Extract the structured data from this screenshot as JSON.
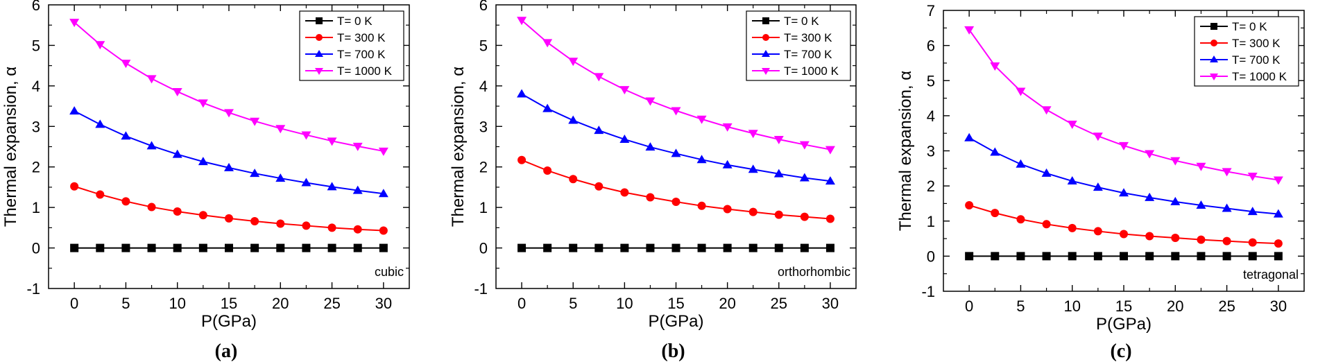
{
  "chart_data": [
    {
      "type": "line",
      "panel_label": "(a)",
      "annotation": "cubic",
      "xlabel": "P(GPa)",
      "ylabel": "Thermal expansion, α",
      "xlim": [
        -2.5,
        32.5
      ],
      "ylim": [
        -1,
        6
      ],
      "xticks": [
        0,
        5,
        10,
        15,
        20,
        25,
        30
      ],
      "yticks": [
        -1,
        0,
        1,
        2,
        3,
        4,
        5,
        6
      ],
      "x": [
        0,
        2.5,
        5,
        7.5,
        10,
        12.5,
        15,
        17.5,
        20,
        22.5,
        25,
        27.5,
        30
      ],
      "series": [
        {
          "name": "T= 0 K",
          "color": "#000000",
          "marker": "square",
          "values": [
            0,
            0,
            0,
            0,
            0,
            0,
            0,
            0,
            0,
            0,
            0,
            0,
            0
          ]
        },
        {
          "name": "T= 300 K",
          "color": "#ff0000",
          "marker": "circle",
          "values": [
            1.52,
            1.32,
            1.15,
            1.01,
            0.9,
            0.81,
            0.73,
            0.66,
            0.6,
            0.55,
            0.5,
            0.46,
            0.43
          ]
        },
        {
          "name": "T= 700 K",
          "color": "#0000ff",
          "marker": "triangle-up",
          "values": [
            3.38,
            3.05,
            2.76,
            2.52,
            2.31,
            2.13,
            1.98,
            1.84,
            1.72,
            1.61,
            1.51,
            1.42,
            1.34
          ]
        },
        {
          "name": "T= 1000 K",
          "color": "#ff00ff",
          "marker": "triangle-down",
          "values": [
            5.57,
            5.02,
            4.56,
            4.18,
            3.86,
            3.58,
            3.34,
            3.13,
            2.95,
            2.79,
            2.64,
            2.51,
            2.39
          ]
        }
      ]
    },
    {
      "type": "line",
      "panel_label": "(b)",
      "annotation": "orthorhombic",
      "xlabel": "P(GPa)",
      "ylabel": "Thermal expansion, α",
      "xlim": [
        -2.5,
        32.5
      ],
      "ylim": [
        -1,
        6
      ],
      "xticks": [
        0,
        5,
        10,
        15,
        20,
        25,
        30
      ],
      "yticks": [
        -1,
        0,
        1,
        2,
        3,
        4,
        5,
        6
      ],
      "x": [
        0,
        2.5,
        5,
        7.5,
        10,
        12.5,
        15,
        17.5,
        20,
        22.5,
        25,
        27.5,
        30
      ],
      "series": [
        {
          "name": "T= 0 K",
          "color": "#000000",
          "marker": "square",
          "values": [
            0,
            0,
            0,
            0,
            0,
            0,
            0,
            0,
            0,
            0,
            0,
            0,
            0
          ]
        },
        {
          "name": "T= 300 K",
          "color": "#ff0000",
          "marker": "circle",
          "values": [
            2.17,
            1.91,
            1.7,
            1.52,
            1.37,
            1.25,
            1.14,
            1.04,
            0.96,
            0.89,
            0.82,
            0.77,
            0.72
          ]
        },
        {
          "name": "T= 700 K",
          "color": "#0000ff",
          "marker": "triangle-up",
          "values": [
            3.8,
            3.44,
            3.15,
            2.9,
            2.68,
            2.49,
            2.33,
            2.18,
            2.05,
            1.94,
            1.83,
            1.73,
            1.65
          ]
        },
        {
          "name": "T= 1000 K",
          "color": "#ff00ff",
          "marker": "triangle-down",
          "values": [
            5.62,
            5.07,
            4.61,
            4.23,
            3.91,
            3.63,
            3.39,
            3.18,
            2.99,
            2.83,
            2.68,
            2.55,
            2.43
          ]
        }
      ]
    },
    {
      "type": "line",
      "panel_label": "(c)",
      "annotation": "tetragonal",
      "xlabel": "P(GPa)",
      "ylabel": "Thermal expansion, α",
      "xlim": [
        -2.5,
        32.5
      ],
      "ylim": [
        -1,
        7
      ],
      "xticks": [
        0,
        5,
        10,
        15,
        20,
        25,
        30
      ],
      "yticks": [
        -1,
        0,
        1,
        2,
        3,
        4,
        5,
        6,
        7
      ],
      "x": [
        0,
        2.5,
        5,
        7.5,
        10,
        12.5,
        15,
        17.5,
        20,
        22.5,
        25,
        27.5,
        30
      ],
      "series": [
        {
          "name": "T= 0 K",
          "color": "#000000",
          "marker": "square",
          "values": [
            0,
            0,
            0,
            0,
            0,
            0,
            0,
            0,
            0,
            0,
            0,
            0,
            0
          ]
        },
        {
          "name": "T= 300 K",
          "color": "#ff0000",
          "marker": "circle",
          "values": [
            1.45,
            1.23,
            1.05,
            0.91,
            0.8,
            0.71,
            0.63,
            0.57,
            0.52,
            0.47,
            0.43,
            0.39,
            0.36
          ]
        },
        {
          "name": "T= 700 K",
          "color": "#0000ff",
          "marker": "triangle-up",
          "values": [
            3.37,
            2.96,
            2.62,
            2.36,
            2.14,
            1.96,
            1.8,
            1.67,
            1.55,
            1.45,
            1.36,
            1.27,
            1.2
          ]
        },
        {
          "name": "T= 1000 K",
          "color": "#ff00ff",
          "marker": "triangle-down",
          "values": [
            6.45,
            5.42,
            4.7,
            4.17,
            3.76,
            3.42,
            3.15,
            2.92,
            2.72,
            2.56,
            2.41,
            2.28,
            2.17
          ]
        }
      ]
    }
  ]
}
